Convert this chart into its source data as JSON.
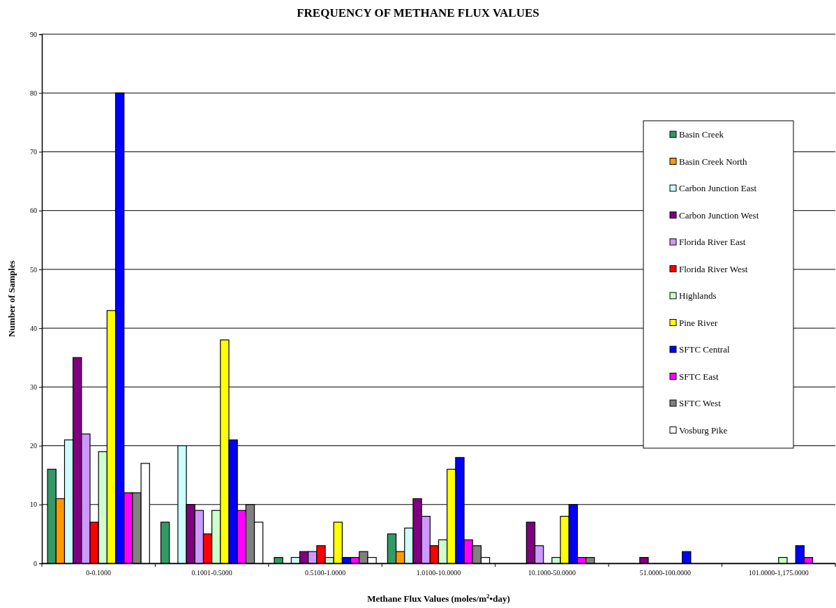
{
  "chart_data": {
    "type": "bar",
    "title": "FREQUENCY OF METHANE FLUX VALUES",
    "xlabel": "Methane Flux Values (moles/m$^{2}$•day)",
    "ylabel": "Number of Samples",
    "categories": [
      "0-0.1000",
      "0.1001-0.5000",
      "0.5100-1.0000",
      "1.0100-10.0000",
      "10.1000-50.0000",
      "51.0000-100.0000",
      "101.0000-1,175.0000"
    ],
    "series": [
      {
        "name": "Basin Creek",
        "color": "#339966",
        "values": [
          16,
          7,
          1,
          5,
          0,
          0,
          0
        ]
      },
      {
        "name": "Basin Creek North",
        "color": "#ff9900",
        "values": [
          11,
          0,
          0,
          2,
          0,
          0,
          0
        ]
      },
      {
        "name": "Carbon Junction East",
        "color": "#ccffff",
        "values": [
          21,
          20,
          1,
          6,
          0,
          0,
          0
        ]
      },
      {
        "name": "Carbon Junction West",
        "color": "#800080",
        "values": [
          35,
          10,
          2,
          11,
          7,
          1,
          0
        ]
      },
      {
        "name": "Florida River East",
        "color": "#cc99ff",
        "values": [
          22,
          9,
          2,
          8,
          3,
          0,
          0
        ]
      },
      {
        "name": "Florida River West",
        "color": "#ff0000",
        "values": [
          7,
          5,
          3,
          3,
          0,
          0,
          0
        ]
      },
      {
        "name": "Highlands",
        "color": "#ccffcc",
        "values": [
          19,
          9,
          1,
          4,
          1,
          0,
          1
        ]
      },
      {
        "name": "Pine River",
        "color": "#ffff00",
        "values": [
          43,
          38,
          7,
          16,
          8,
          0,
          0
        ]
      },
      {
        "name": "SFTC Central",
        "color": "#0000ff",
        "values": [
          80,
          21,
          1,
          18,
          10,
          2,
          3
        ]
      },
      {
        "name": "SFTC East",
        "color": "#ff00ff",
        "values": [
          12,
          9,
          1,
          4,
          1,
          0,
          1
        ]
      },
      {
        "name": "SFTC West",
        "color": "#808080",
        "values": [
          12,
          10,
          2,
          3,
          1,
          0,
          0
        ]
      },
      {
        "name": "Vosburg Pike",
        "color": "#ffffff",
        "values": [
          17,
          7,
          1,
          1,
          0,
          0,
          0
        ]
      }
    ],
    "ylim": [
      0,
      90
    ],
    "yticks": [
      0,
      10,
      20,
      30,
      40,
      50,
      60,
      70,
      80,
      90
    ],
    "grid": "y",
    "legend": "right"
  }
}
